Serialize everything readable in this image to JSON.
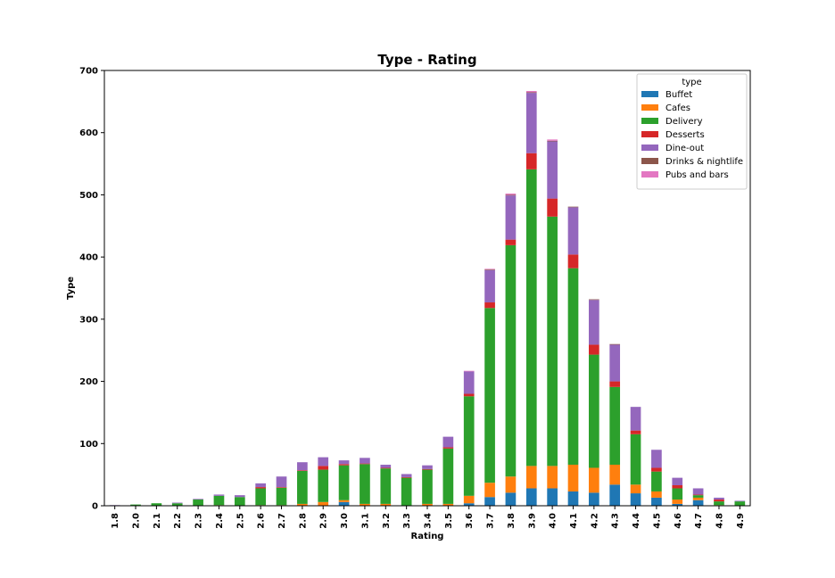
{
  "chart_data": {
    "type": "bar",
    "stacked": true,
    "title": "Type - Rating",
    "xlabel": "Rating",
    "ylabel": "Type",
    "ylim": [
      0,
      700
    ],
    "yticks": [
      "0",
      "100",
      "200",
      "300",
      "400",
      "500",
      "600",
      "700"
    ],
    "grid": false,
    "legend": {
      "title": "type",
      "placement": "top-right"
    },
    "categories": [
      "1.8",
      "2.0",
      "2.1",
      "2.2",
      "2.3",
      "2.4",
      "2.5",
      "2.6",
      "2.7",
      "2.8",
      "2.9",
      "3.0",
      "3.1",
      "3.2",
      "3.3",
      "3.4",
      "3.5",
      "3.6",
      "3.7",
      "3.8",
      "3.9",
      "4.0",
      "4.1",
      "4.2",
      "4.3",
      "4.4",
      "4.5",
      "4.6",
      "4.7",
      "4.8",
      "4.9"
    ],
    "series": [
      {
        "name": "Buffet",
        "color": "#1f77b4",
        "values": [
          0,
          0,
          0,
          0,
          0,
          0,
          0,
          0,
          0,
          0,
          0,
          6,
          0,
          0,
          0,
          0,
          0,
          4,
          14,
          21,
          28,
          28,
          23,
          21,
          34,
          20,
          13,
          3,
          9,
          0,
          0
        ]
      },
      {
        "name": "Cafes",
        "color": "#ff7f0e",
        "values": [
          0,
          0,
          0,
          0,
          0,
          1,
          0,
          1,
          1,
          3,
          6,
          3,
          3,
          3,
          0,
          3,
          3,
          12,
          23,
          26,
          36,
          36,
          43,
          40,
          32,
          14,
          10,
          7,
          4,
          1,
          0
        ]
      },
      {
        "name": "Delivery",
        "color": "#2ca02c",
        "values": [
          0,
          2,
          4,
          4,
          10,
          15,
          14,
          27,
          28,
          53,
          52,
          56,
          64,
          57,
          45,
          55,
          89,
          160,
          281,
          372,
          477,
          401,
          316,
          182,
          125,
          81,
          32,
          18,
          4,
          6,
          7
        ]
      },
      {
        "name": "Desserts",
        "color": "#d62728",
        "values": [
          0,
          0,
          0,
          0,
          0,
          0,
          0,
          2,
          1,
          1,
          6,
          2,
          1,
          1,
          1,
          1,
          2,
          4,
          9,
          9,
          26,
          29,
          22,
          16,
          9,
          6,
          6,
          5,
          1,
          3,
          0
        ]
      },
      {
        "name": "Dine-out",
        "color": "#9467bd",
        "values": [
          1,
          0,
          0,
          1,
          1,
          2,
          3,
          6,
          17,
          13,
          14,
          6,
          9,
          5,
          5,
          6,
          17,
          36,
          52,
          71,
          97,
          92,
          76,
          72,
          59,
          38,
          29,
          12,
          10,
          3,
          1
        ]
      },
      {
        "name": "Drinks & nightlife",
        "color": "#8c564b",
        "values": [
          0,
          0,
          0,
          0,
          0,
          0,
          0,
          0,
          0,
          0,
          0,
          0,
          0,
          0,
          0,
          0,
          0,
          0,
          1,
          1,
          1,
          1,
          1,
          1,
          1,
          0,
          0,
          0,
          0,
          0,
          0
        ]
      },
      {
        "name": "Pubs and bars",
        "color": "#e377c2",
        "values": [
          0,
          0,
          0,
          0,
          0,
          0,
          0,
          0,
          0,
          0,
          0,
          0,
          0,
          0,
          0,
          0,
          0,
          1,
          1,
          2,
          2,
          2,
          0,
          0,
          0,
          0,
          0,
          0,
          0,
          0,
          0
        ]
      }
    ]
  }
}
